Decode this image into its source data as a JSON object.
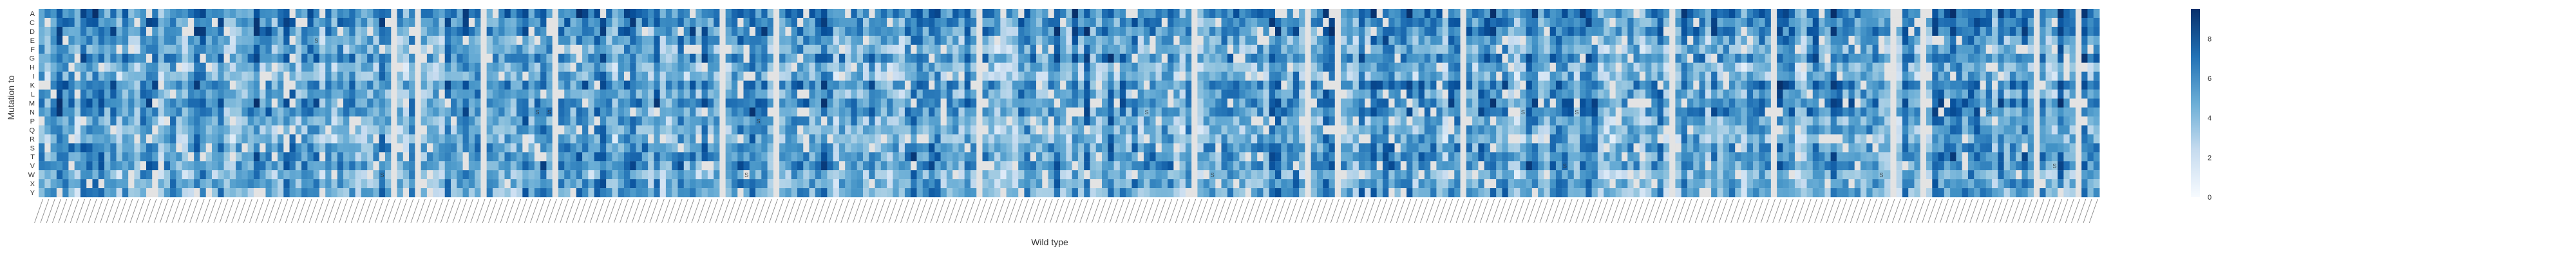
{
  "chart_data": {
    "type": "heatmap",
    "xlabel": "Wild type",
    "ylabel": "Mutation to",
    "y_categories": [
      "A",
      "C",
      "D",
      "E",
      "F",
      "G",
      "H",
      "I",
      "K",
      "L",
      "M",
      "N",
      "P",
      "Q",
      "R",
      "S",
      "T",
      "V",
      "W",
      "X",
      "Y"
    ],
    "x_tick_count": 345,
    "colorbar": {
      "min": 0,
      "max": 9.5,
      "ticks": [
        0,
        2,
        4,
        6,
        8
      ],
      "cmap": "Blues"
    },
    "missing_color": "#e3e3e3",
    "cell_markers": [
      {
        "col": 46,
        "row": 3,
        "label": "S"
      },
      {
        "col": 83,
        "row": 11,
        "label": "S"
      },
      {
        "col": 85,
        "row": 11,
        "label": "S"
      },
      {
        "col": 120,
        "row": 12,
        "label": "S"
      },
      {
        "col": 185,
        "row": 11,
        "label": "S"
      },
      {
        "col": 248,
        "row": 11,
        "label": "S"
      },
      {
        "col": 257,
        "row": 11,
        "label": "S"
      },
      {
        "col": 326,
        "row": 11,
        "label": "S"
      },
      {
        "col": 57,
        "row": 18,
        "label": "S"
      },
      {
        "col": 118,
        "row": 18,
        "label": "S"
      },
      {
        "col": 196,
        "row": 18,
        "label": "S"
      },
      {
        "col": 255,
        "row": 17,
        "label": "S"
      },
      {
        "col": 308,
        "row": 18,
        "label": "S"
      },
      {
        "col": 337,
        "row": 17,
        "label": "S"
      }
    ]
  },
  "colors": {
    "low": "#f7fbff",
    "high": "#08306b",
    "missing": "#e3e3e3"
  }
}
